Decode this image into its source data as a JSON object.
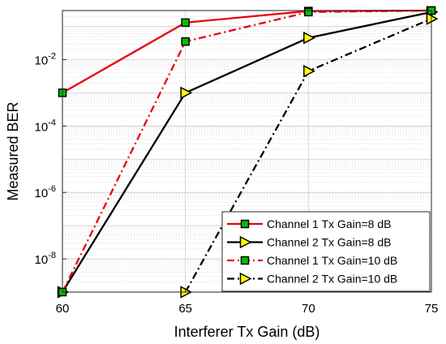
{
  "chart_data": {
    "type": "line",
    "xlabel": "Interferer Tx Gain (dB)",
    "ylabel": "Measured BER",
    "xlim": [
      60,
      75
    ],
    "ylim": [
      1e-09,
      0.3
    ],
    "yscale": "log",
    "grid": true,
    "legend_position": "bottom-right",
    "x_ticks": [
      "60",
      "65",
      "70",
      "75"
    ],
    "y_ticks": [
      {
        "base": "10",
        "exp": "-8",
        "value": 1e-08
      },
      {
        "base": "10",
        "exp": "-6",
        "value": 1e-06
      },
      {
        "base": "10",
        "exp": "-4",
        "value": 0.0001
      },
      {
        "base": "10",
        "exp": "-2",
        "value": 0.01
      }
    ],
    "x": [
      60,
      65,
      70,
      75
    ],
    "series": [
      {
        "name": "Channel 1 Tx Gain=8 dB",
        "values": [
          0.001,
          0.13,
          0.29,
          0.3
        ],
        "color": "#e8000b",
        "dash": "solid",
        "marker": "square",
        "marker_color": "#00c000"
      },
      {
        "name": "Channel 2 Tx Gain=8 dB",
        "values": [
          1e-09,
          0.001,
          0.045,
          0.27
        ],
        "color": "#000000",
        "dash": "solid",
        "marker": "triangle-right",
        "marker_color": "#ffff00"
      },
      {
        "name": "Channel 1 Tx Gain=10 dB",
        "values": [
          1e-09,
          0.035,
          0.27,
          0.3
        ],
        "color": "#e8000b",
        "dash": "dashdot",
        "marker": "square",
        "marker_color": "#00c000"
      },
      {
        "name": "Channel 2 Tx Gain=10 dB",
        "values": [
          null,
          1e-09,
          0.0045,
          0.17
        ],
        "color": "#000000",
        "dash": "dashdot",
        "marker": "triangle-right",
        "marker_color": "#ffff00"
      }
    ]
  }
}
